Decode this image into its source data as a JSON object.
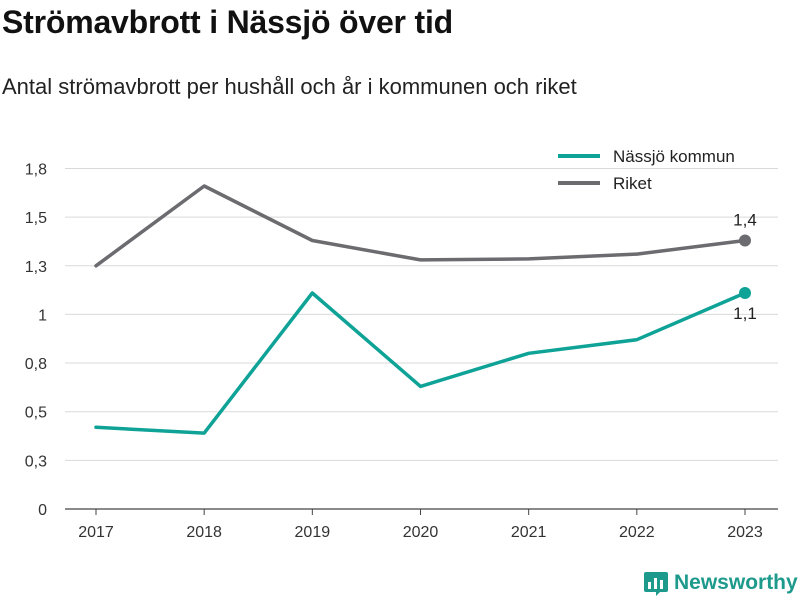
{
  "title": "Strömavbrott i Nässjö över tid",
  "subtitle": "Antal strömavbrott per hushåll och år i kommunen och riket",
  "brand": "Newsworthy",
  "colors": {
    "nassjo": "#0fa398",
    "riket": "#6b6b70",
    "brand": "#1e9a8c",
    "grid": "#d9d9d9"
  },
  "chart_data": {
    "type": "line",
    "categories": [
      "2017",
      "2018",
      "2019",
      "2020",
      "2021",
      "2022",
      "2023"
    ],
    "ylim": [
      0,
      1.85
    ],
    "yticks": [
      {
        "value": 0,
        "label": "0"
      },
      {
        "value": 0.25,
        "label": "0,3"
      },
      {
        "value": 0.5,
        "label": "0,5"
      },
      {
        "value": 0.75,
        "label": "0,8"
      },
      {
        "value": 1.0,
        "label": "1"
      },
      {
        "value": 1.25,
        "label": "1,3"
      },
      {
        "value": 1.5,
        "label": "1,5"
      },
      {
        "value": 1.75,
        "label": "1,8"
      }
    ],
    "grid": true,
    "legend_position": "top-right",
    "series": [
      {
        "name": "Nässjö kommun",
        "color": "#0fa398",
        "values": [
          0.42,
          0.39,
          1.11,
          0.63,
          0.8,
          0.87,
          1.11
        ],
        "end_label": "1,1",
        "end_label_position": "below"
      },
      {
        "name": "Riket",
        "color": "#6b6b70",
        "values": [
          1.25,
          1.66,
          1.38,
          1.28,
          1.285,
          1.31,
          1.38
        ],
        "end_label": "1,4",
        "end_label_position": "above"
      }
    ]
  }
}
